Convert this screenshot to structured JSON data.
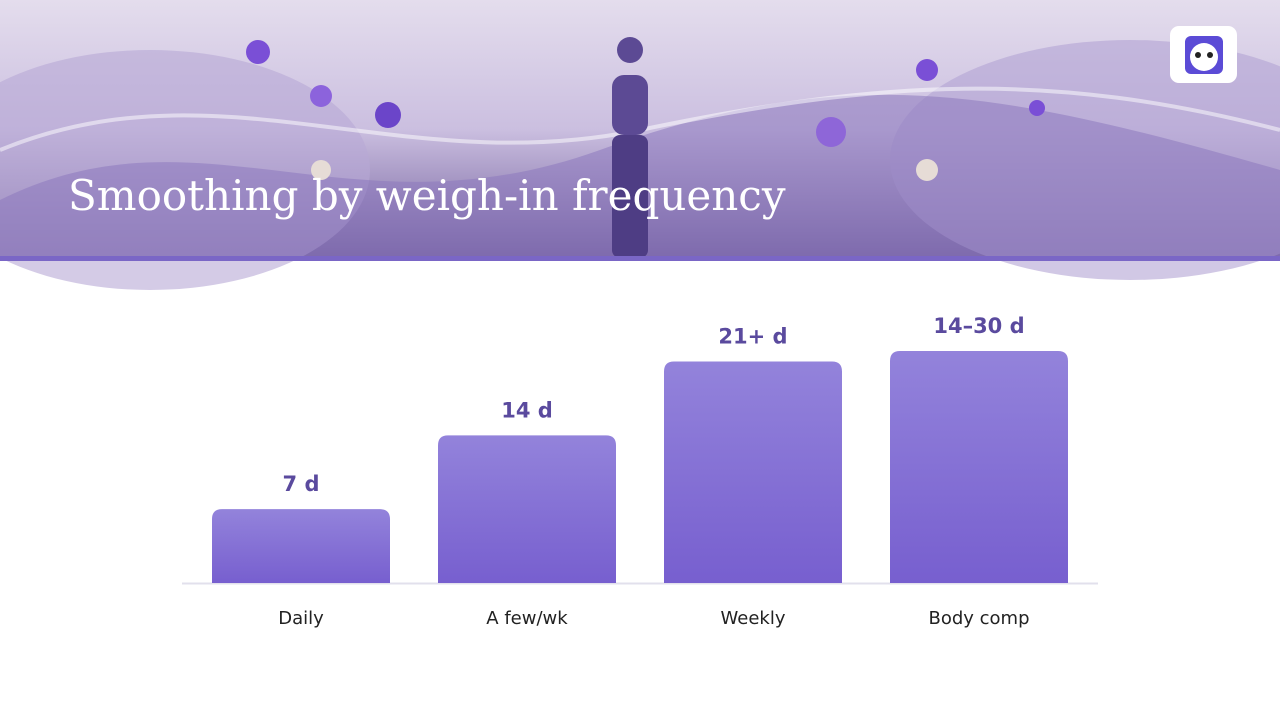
{
  "chart_data": {
    "type": "bar",
    "title": "Smoothing by weigh-in frequency",
    "categories": [
      "Daily",
      "A few/wk",
      "Weekly",
      "Body comp"
    ],
    "values": [
      7,
      14,
      21,
      22
    ],
    "value_labels": [
      "7 d",
      "14 d",
      "21+ d",
      "14–30 d"
    ],
    "color": "#7d66d2"
  }
}
